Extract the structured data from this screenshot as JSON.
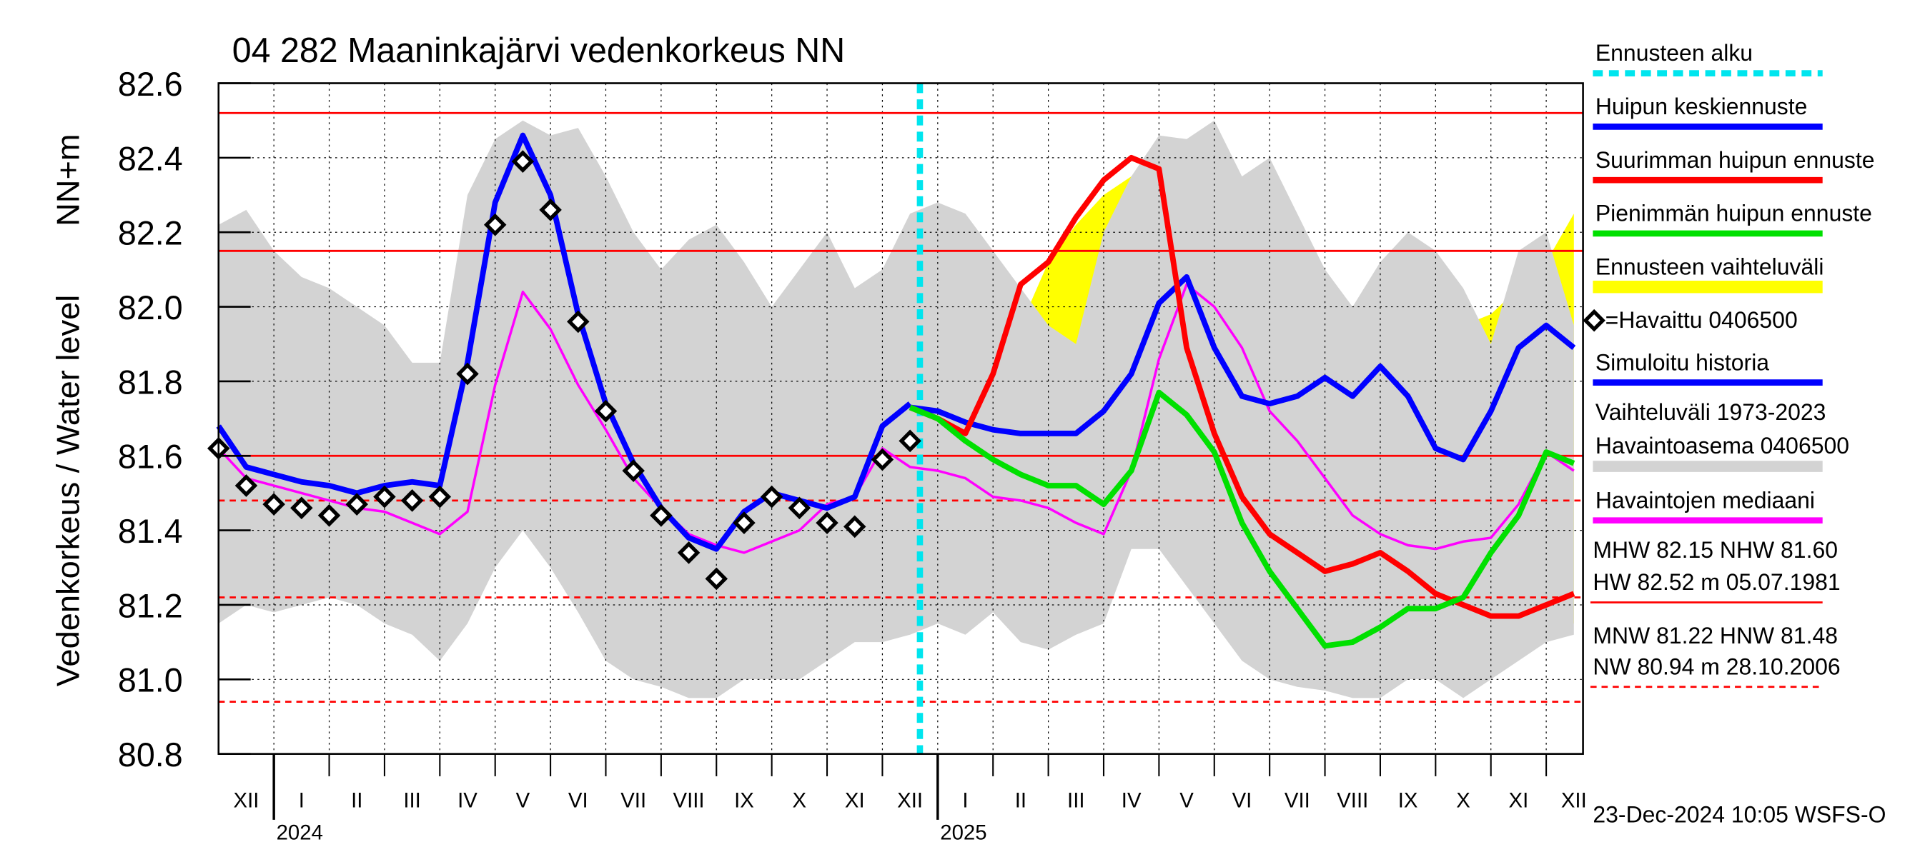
{
  "chart_data": {
    "type": "line",
    "title": "04 282 Maaninkajärvi vedenkorkeus NN",
    "y_label": "Vedenkorkeus / Water level",
    "y_unit": "NN+m",
    "footer": "23-Dec-2024 10:05 WSFS-O",
    "categories": [
      null,
      "XII",
      null,
      "I",
      null,
      "II",
      null,
      "III",
      null,
      "IV",
      null,
      "V",
      null,
      "VI",
      null,
      "VII",
      null,
      "VIII",
      null,
      "IX",
      null,
      "X",
      null,
      "XI",
      null,
      "XII",
      null,
      "I",
      null,
      "II",
      null,
      "III",
      null,
      "IV",
      null,
      "V",
      null,
      "VI",
      null,
      "VII",
      null,
      "VIII",
      null,
      "IX",
      null,
      "X",
      null,
      "XI",
      null,
      "XII"
    ],
    "years": [
      "2024",
      "2025"
    ],
    "ylim": [
      80.8,
      82.6
    ],
    "yticks": [
      80.8,
      {
        "value": 81,
        "label": "81.0"
      },
      81.2,
      81.4,
      81.6,
      81.8,
      {
        "value": 82,
        "label": "82.0"
      },
      82.2,
      82.4,
      82.6
    ],
    "grid": true,
    "forecast_start": {
      "name": "Ennusteen alku",
      "color": "#00e5ee"
    },
    "series": [
      {
        "name": "Huipun keskiennuste",
        "color": "#0000ff",
        "style": "line",
        "values": [
          null,
          null,
          null,
          null,
          null,
          null,
          null,
          null,
          null,
          null,
          null,
          null,
          null,
          null,
          null,
          null,
          null,
          null,
          null,
          null,
          null,
          null,
          null,
          null,
          null,
          81.73,
          81.72,
          81.69,
          81.67,
          81.66,
          81.66,
          81.66,
          81.72,
          81.82,
          82.01,
          82.08,
          81.89,
          81.76,
          81.74,
          81.76,
          81.81,
          81.76,
          81.84,
          81.76,
          81.62,
          81.59,
          81.72,
          81.89,
          81.95,
          81.89
        ]
      },
      {
        "name": "Suurimman huipun ennuste",
        "color": "#ff0000",
        "style": "line",
        "values": [
          null,
          null,
          null,
          null,
          null,
          null,
          null,
          null,
          null,
          null,
          null,
          null,
          null,
          null,
          null,
          null,
          null,
          null,
          null,
          null,
          null,
          null,
          null,
          null,
          null,
          81.73,
          81.7,
          81.66,
          81.82,
          82.06,
          82.12,
          82.24,
          82.34,
          82.4,
          82.37,
          81.89,
          81.66,
          81.49,
          81.39,
          81.34,
          81.29,
          81.31,
          81.34,
          81.29,
          81.23,
          81.2,
          81.17,
          81.17,
          81.2,
          81.23
        ]
      },
      {
        "name": "Pienimmän huipun ennuste",
        "color": "#00e000",
        "style": "line",
        "values": [
          null,
          null,
          null,
          null,
          null,
          null,
          null,
          null,
          null,
          null,
          null,
          null,
          null,
          null,
          null,
          null,
          null,
          null,
          null,
          null,
          null,
          null,
          null,
          null,
          null,
          81.73,
          81.7,
          81.64,
          81.59,
          81.55,
          81.52,
          81.52,
          81.47,
          81.56,
          81.77,
          81.71,
          81.61,
          81.42,
          81.29,
          81.19,
          81.09,
          81.1,
          81.14,
          81.19,
          81.19,
          81.22,
          81.34,
          81.44,
          81.61,
          81.58
        ]
      },
      {
        "name": "Ennusteen vaihteluväli",
        "color": "#ffff00",
        "style": "band",
        "values": [
          null,
          null,
          null,
          null,
          null,
          null,
          null,
          null,
          null,
          null,
          null,
          null,
          null,
          null,
          null,
          null,
          null,
          null,
          null,
          null,
          null,
          null,
          null,
          null,
          null,
          81.75,
          81.77,
          81.8,
          81.85,
          81.95,
          82.12,
          82.22,
          82.3,
          82.35,
          82.4,
          82.33,
          82.25,
          82.2,
          82.15,
          82.05,
          82.0,
          81.98,
          81.95,
          81.9,
          81.92,
          81.95,
          81.98,
          82.05,
          82.12,
          82.25
        ],
        "lower": [
          null,
          null,
          null,
          null,
          null,
          null,
          null,
          null,
          null,
          null,
          null,
          null,
          null,
          null,
          null,
          null,
          null,
          null,
          null,
          null,
          null,
          null,
          null,
          null,
          null,
          81.72,
          81.68,
          81.62,
          81.55,
          81.5,
          81.47,
          81.45,
          81.43,
          81.48,
          81.65,
          81.62,
          81.55,
          81.4,
          81.25,
          81.15,
          81.08,
          81.08,
          81.1,
          81.1,
          81.08,
          81.1,
          81.12,
          81.12,
          81.13,
          81.15
        ]
      },
      {
        "name": "=Havaittu 0406500",
        "color": "#000000",
        "style": "markers",
        "values": [
          81.62,
          81.52,
          81.47,
          81.46,
          81.44,
          81.47,
          81.49,
          81.48,
          81.49,
          81.82,
          82.22,
          82.39,
          82.26,
          81.96,
          81.72,
          81.56,
          81.44,
          81.34,
          81.27,
          81.42,
          81.49,
          81.46,
          81.42,
          81.41,
          81.59,
          81.64,
          null,
          null,
          null,
          null,
          null,
          null,
          null,
          null,
          null,
          null,
          null,
          null,
          null,
          null,
          null,
          null,
          null,
          null,
          null,
          null,
          null,
          null,
          null,
          null
        ]
      },
      {
        "name": "Simuloitu historia",
        "color": "#0000ff",
        "style": "line",
        "values": [
          81.68,
          81.57,
          81.55,
          81.53,
          81.52,
          81.5,
          81.52,
          81.53,
          81.52,
          81.85,
          82.28,
          82.46,
          82.3,
          81.98,
          81.74,
          81.58,
          81.46,
          81.38,
          81.35,
          81.45,
          81.5,
          81.48,
          81.46,
          81.49,
          81.68,
          81.74,
          null,
          null,
          null,
          null,
          null,
          null,
          null,
          null,
          null,
          null,
          null,
          null,
          null,
          null,
          null,
          null,
          null,
          null,
          null,
          null,
          null,
          null,
          null,
          null
        ]
      },
      {
        "name": [
          "Vaihteluväli 1973-2023",
          " Havaintoasema 0406500"
        ],
        "color": "#d3d3d3",
        "style": "band",
        "values": [
          82.22,
          82.26,
          82.15,
          82.08,
          82.05,
          82.0,
          81.95,
          81.85,
          81.85,
          82.3,
          82.45,
          82.5,
          82.46,
          82.48,
          82.35,
          82.2,
          82.1,
          82.18,
          82.22,
          82.12,
          82.0,
          82.1,
          82.2,
          82.05,
          82.1,
          82.25,
          82.28,
          82.25,
          82.15,
          82.05,
          81.95,
          81.9,
          82.2,
          82.35,
          82.46,
          82.45,
          82.5,
          82.35,
          82.4,
          82.25,
          82.1,
          82.0,
          82.12,
          82.2,
          82.15,
          82.05,
          81.9,
          82.15,
          82.2,
          81.95
        ],
        "lower": [
          81.15,
          81.2,
          81.18,
          81.2,
          81.22,
          81.2,
          81.15,
          81.12,
          81.05,
          81.15,
          81.3,
          81.4,
          81.3,
          81.18,
          81.05,
          81.0,
          80.98,
          80.95,
          80.95,
          81.0,
          81.0,
          81.0,
          81.05,
          81.1,
          81.1,
          81.12,
          81.15,
          81.12,
          81.18,
          81.1,
          81.08,
          81.12,
          81.15,
          81.35,
          81.35,
          81.25,
          81.15,
          81.05,
          81.0,
          80.98,
          80.97,
          80.95,
          80.95,
          81.0,
          81.0,
          80.95,
          81.0,
          81.05,
          81.1,
          81.12
        ]
      },
      {
        "name": "Havaintojen mediaani",
        "color": "#ff00ff",
        "style": "line",
        "values": [
          81.62,
          81.54,
          81.52,
          81.5,
          81.48,
          81.46,
          81.45,
          81.42,
          81.39,
          81.45,
          81.79,
          82.04,
          81.94,
          81.79,
          81.67,
          81.54,
          81.46,
          81.39,
          81.36,
          81.34,
          81.37,
          81.4,
          81.47,
          81.49,
          81.62,
          81.57,
          81.56,
          81.54,
          81.49,
          81.48,
          81.46,
          81.42,
          81.39,
          81.56,
          81.86,
          82.06,
          82.0,
          81.89,
          81.72,
          81.64,
          81.54,
          81.44,
          81.39,
          81.36,
          81.35,
          81.37,
          81.38,
          81.47,
          81.61,
          81.56
        ]
      }
    ],
    "reference_color": "#ff0000",
    "reference_lines": [
      {
        "value": 82.52,
        "style": "solid"
      },
      {
        "value": 82.15,
        "style": "solid"
      },
      {
        "value": 81.6,
        "style": "solid"
      },
      {
        "value": 81.48,
        "style": "dashed"
      },
      {
        "value": 81.22,
        "style": "dashed"
      },
      {
        "value": 80.94,
        "style": "dashed"
      }
    ],
    "stats": [
      "MHW  82.15 NHW  81.60",
      "HW  82.52 m 05.07.1981",
      "MNW  81.22 HNW  81.48",
      "NW  80.94 m 28.10.2006"
    ]
  }
}
